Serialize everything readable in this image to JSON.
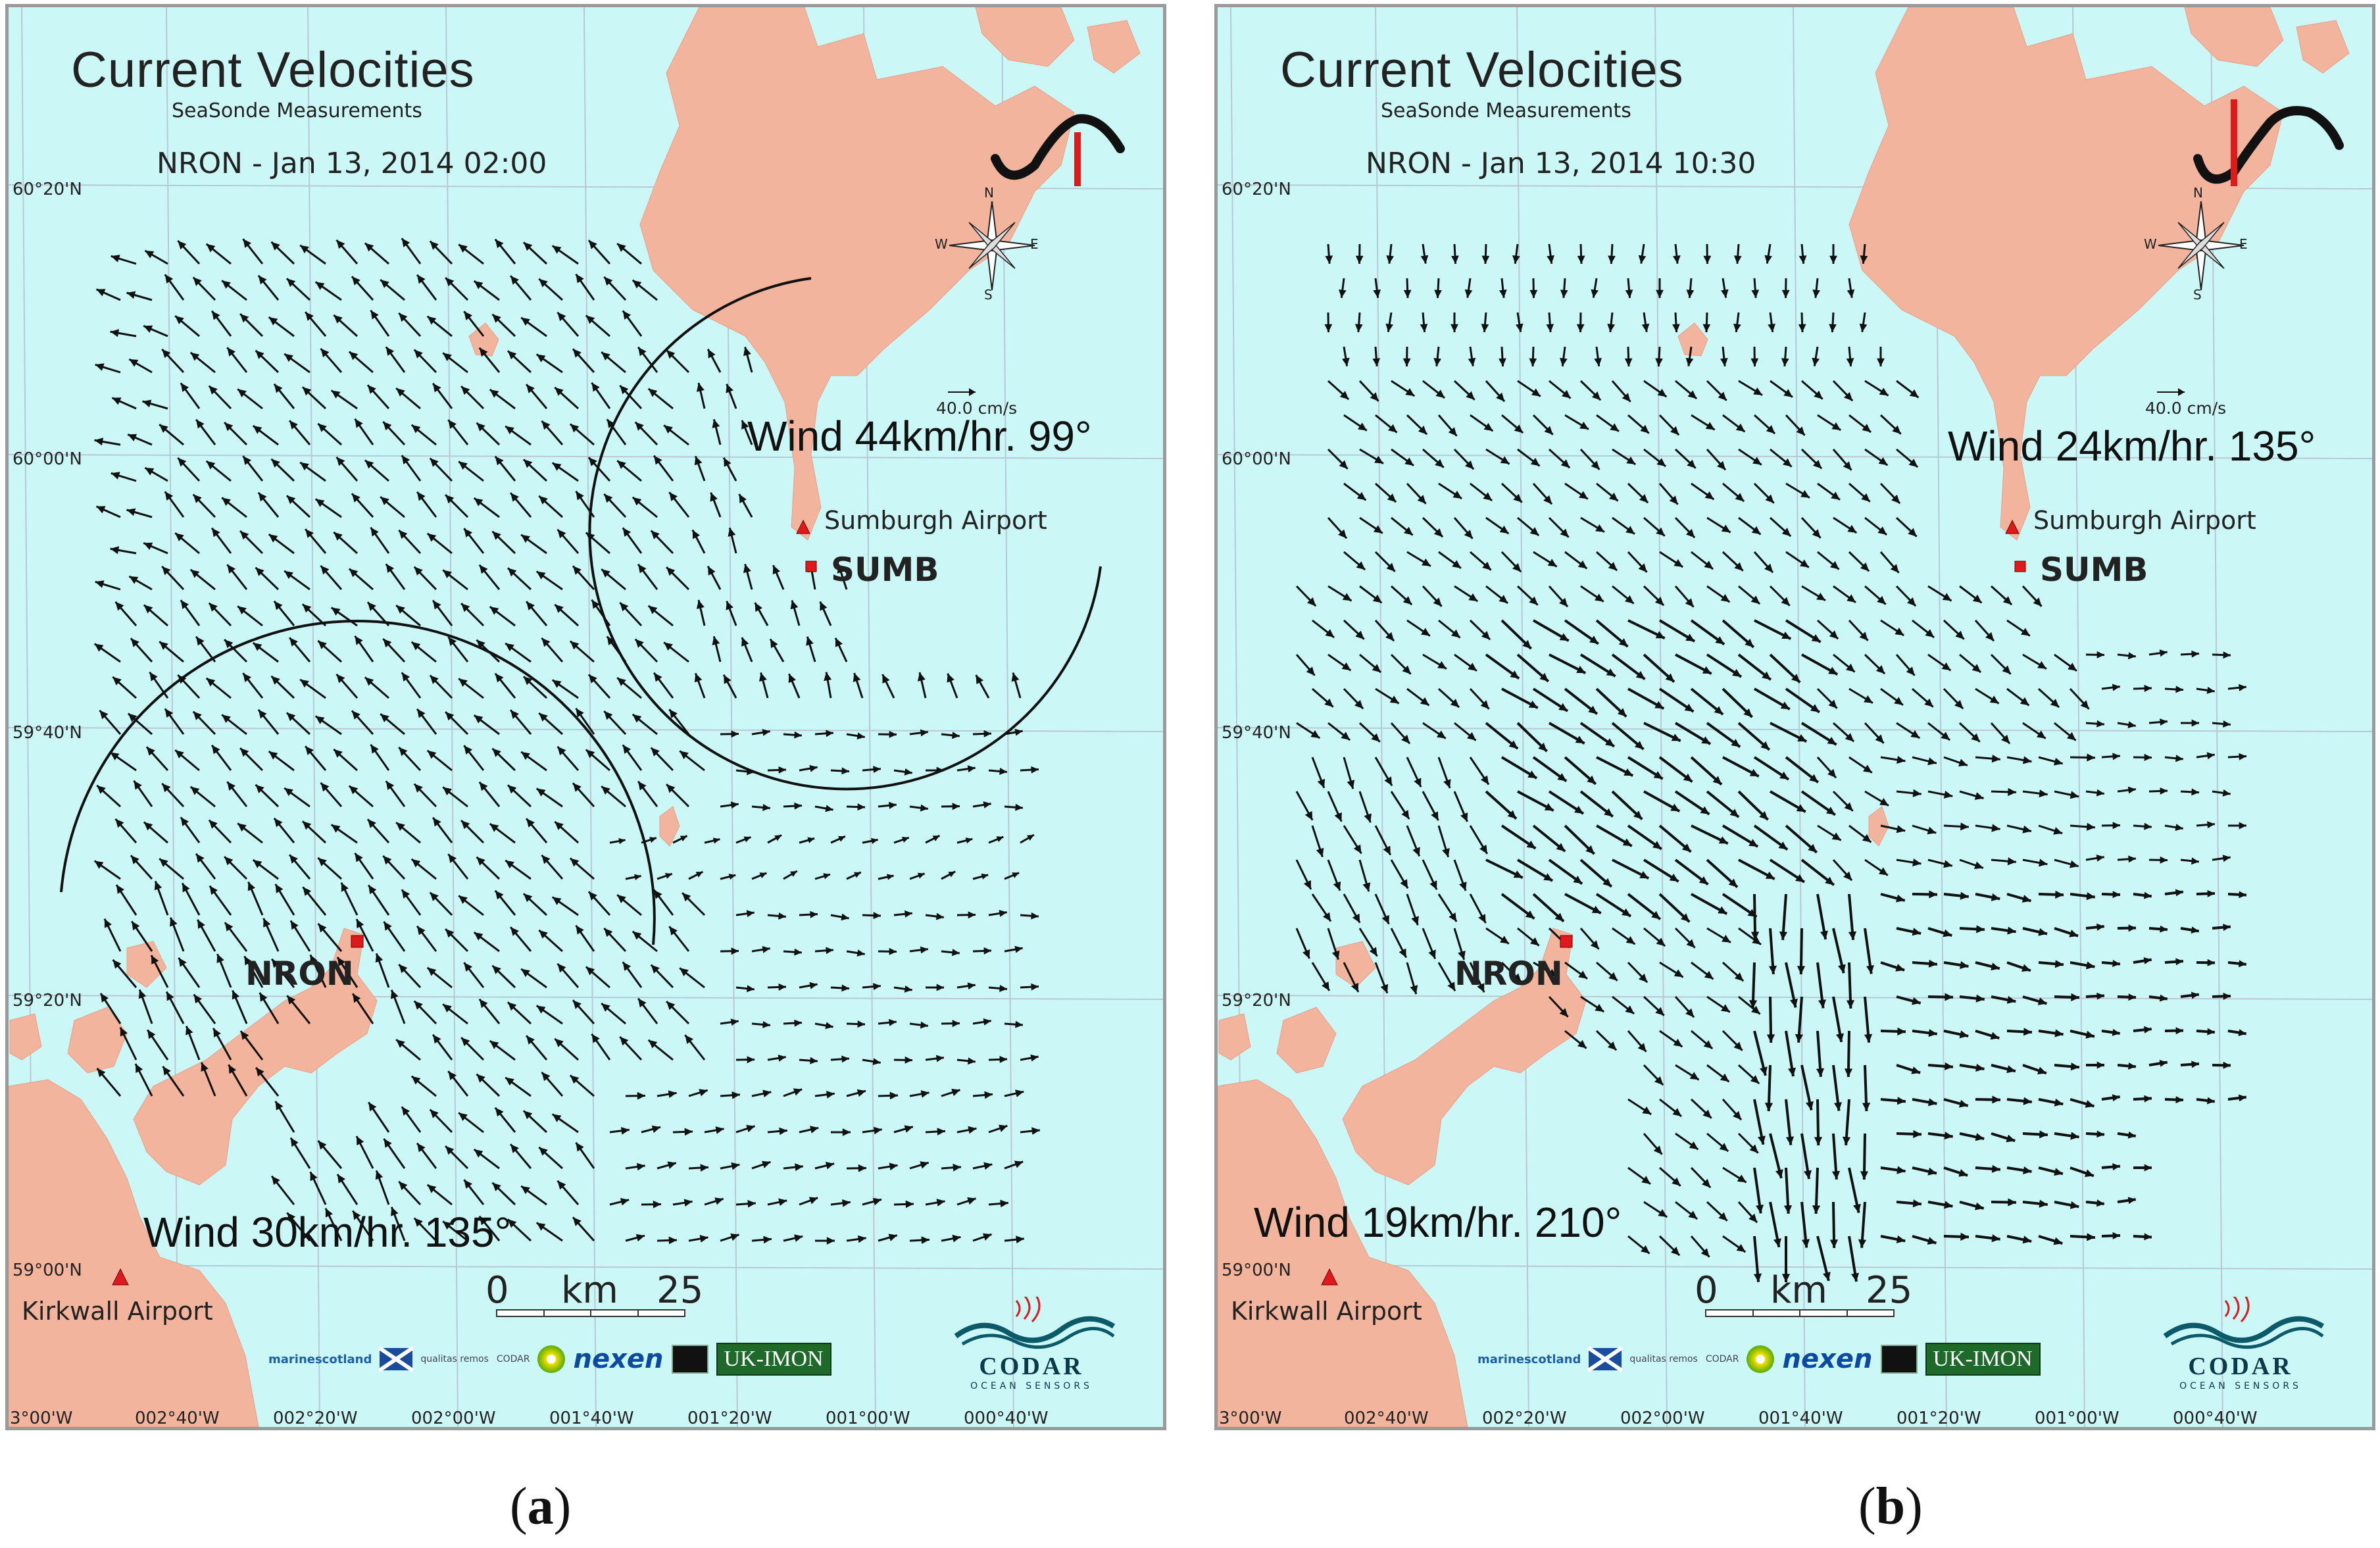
{
  "panels": [
    {
      "id": "a",
      "title": "Current Velocities",
      "subtitle": "SeaSonde Measurements",
      "datetime": "NRON - Jan 13, 2014 02:00",
      "lat_labels": [
        "60°20'N",
        "60°00'N",
        "59°40'N",
        "59°20'N",
        "59°00'N"
      ],
      "lon_labels": [
        "3°00'W",
        "002°40'W",
        "002°20'W",
        "002°00'W",
        "001°40'W",
        "001°20'W",
        "001°00'W",
        "000°40'W"
      ],
      "scale_vector_label": "40.0 cm/s",
      "wind_top": "Wind 44km/hr. 99°",
      "wind_bottom": "Wind 30km/hr. 135°",
      "sumburgh_airport": "Sumburgh Airport",
      "sumb": "SUMB",
      "nron": "NRON",
      "kirkwall_airport": "Kirkwall Airport",
      "scale_bar": {
        "zero": "0",
        "unit": "km",
        "max": "25"
      },
      "compass": {
        "n": "N",
        "s": "S",
        "e": "E",
        "w": "W"
      },
      "caption": "a",
      "current_field": "dominant flow toward the northwest (~315°) over most of the domain; northward flow near SUMB; eastward flow in the southeast; counter-clockwise circular features around both stations",
      "wind_marker_color": "#e0191b"
    },
    {
      "id": "b",
      "title": "Current Velocities",
      "subtitle": "SeaSonde Measurements",
      "datetime": "NRON - Jan 13, 2014 10:30",
      "lat_labels": [
        "60°20'N",
        "60°00'N",
        "59°40'N",
        "59°20'N",
        "59°00'N"
      ],
      "lon_labels": [
        "3°00'W",
        "002°40'W",
        "002°20'W",
        "002°00'W",
        "001°40'W",
        "001°20'W",
        "001°00'W",
        "000°40'W"
      ],
      "scale_vector_label": "40.0 cm/s",
      "wind_top": "Wind 24km/hr. 135°",
      "wind_bottom": "Wind 19km/hr. 210°",
      "sumburgh_airport": "Sumburgh Airport",
      "sumb": "SUMB",
      "nron": "NRON",
      "kirkwall_airport": "Kirkwall Airport",
      "scale_bar": {
        "zero": "0",
        "unit": "km",
        "max": "25"
      },
      "compass": {
        "n": "N",
        "s": "S",
        "e": "E",
        "w": "W"
      },
      "caption": "b",
      "current_field": "strong southeastward flow in the west-centre turning southward toward the south; weaker eastward flow in the east",
      "wind_marker_color": "#e0191b"
    }
  ],
  "logos": {
    "marine_scotland": "marinescotland",
    "qualitas": "qualitas remos",
    "codar_small": "CODAR",
    "nexen": "nexen",
    "ukimon": "UK-IMON",
    "codar_name": "CODAR",
    "codar_sub": "OCEAN SENSORS"
  },
  "colors": {
    "sea": "#ccf7f7",
    "land": "#f2b49c",
    "grid": "#b8c8d4",
    "arrow": "#111111",
    "station": "#e0191b"
  }
}
